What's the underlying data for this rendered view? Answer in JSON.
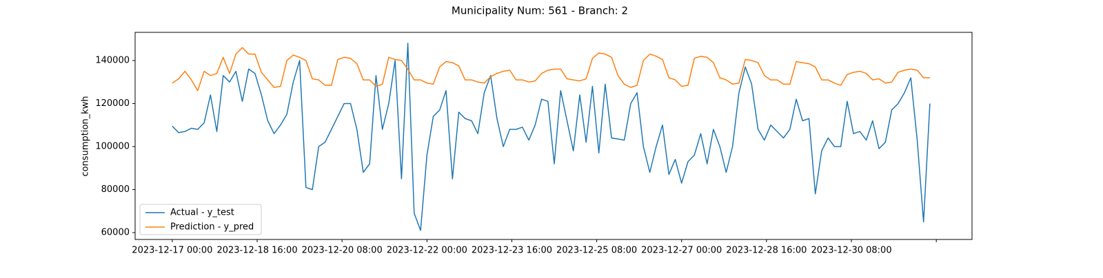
{
  "chart_data": {
    "type": "line",
    "title": "Municipality Num: 561 - Branch: 2",
    "y_label": "consumption_kwh",
    "x": [
      "2023-12-17 00:00",
      "2023-12-17 03:00",
      "2023-12-17 06:00",
      "2023-12-17 09:00",
      "2023-12-17 12:00",
      "2023-12-17 15:00",
      "2023-12-17 18:00",
      "2023-12-17 21:00",
      "2023-12-18 00:00",
      "2023-12-18 03:00",
      "2023-12-18 06:00",
      "2023-12-18 09:00",
      "2023-12-18 12:00",
      "2023-12-18 15:00",
      "2023-12-18 18:00",
      "2023-12-18 21:00",
      "2023-12-19 00:00",
      "2023-12-19 03:00",
      "2023-12-19 06:00",
      "2023-12-19 09:00",
      "2023-12-19 12:00",
      "2023-12-19 15:00",
      "2023-12-19 18:00",
      "2023-12-19 21:00",
      "2023-12-20 00:00",
      "2023-12-20 03:00",
      "2023-12-20 06:00",
      "2023-12-20 09:00",
      "2023-12-20 12:00",
      "2023-12-20 15:00",
      "2023-12-20 18:00",
      "2023-12-20 21:00",
      "2023-12-21 00:00",
      "2023-12-21 03:00",
      "2023-12-21 06:00",
      "2023-12-21 09:00",
      "2023-12-21 12:00",
      "2023-12-21 15:00",
      "2023-12-21 18:00",
      "2023-12-21 21:00",
      "2023-12-22 00:00",
      "2023-12-22 03:00",
      "2023-12-22 06:00",
      "2023-12-22 09:00",
      "2023-12-22 12:00",
      "2023-12-22 15:00",
      "2023-12-22 18:00",
      "2023-12-22 21:00",
      "2023-12-23 00:00",
      "2023-12-23 03:00",
      "2023-12-23 06:00",
      "2023-12-23 09:00",
      "2023-12-23 12:00",
      "2023-12-23 15:00",
      "2023-12-23 18:00",
      "2023-12-23 21:00",
      "2023-12-24 00:00",
      "2023-12-24 03:00",
      "2023-12-24 06:00",
      "2023-12-24 09:00",
      "2023-12-24 12:00",
      "2023-12-24 15:00",
      "2023-12-24 18:00",
      "2023-12-24 21:00",
      "2023-12-25 00:00",
      "2023-12-25 03:00",
      "2023-12-25 06:00",
      "2023-12-25 09:00",
      "2023-12-25 12:00",
      "2023-12-25 15:00",
      "2023-12-25 18:00",
      "2023-12-25 21:00",
      "2023-12-26 00:00",
      "2023-12-26 03:00",
      "2023-12-26 06:00",
      "2023-12-26 09:00",
      "2023-12-26 12:00",
      "2023-12-26 15:00",
      "2023-12-26 18:00",
      "2023-12-26 21:00",
      "2023-12-27 00:00",
      "2023-12-27 03:00",
      "2023-12-27 06:00",
      "2023-12-27 09:00",
      "2023-12-27 12:00",
      "2023-12-27 15:00",
      "2023-12-27 18:00",
      "2023-12-27 21:00",
      "2023-12-28 00:00",
      "2023-12-28 03:00",
      "2023-12-28 06:00",
      "2023-12-28 09:00",
      "2023-12-28 12:00",
      "2023-12-28 15:00",
      "2023-12-28 18:00",
      "2023-12-28 21:00",
      "2023-12-29 00:00",
      "2023-12-29 03:00",
      "2023-12-29 06:00",
      "2023-12-29 09:00",
      "2023-12-29 12:00",
      "2023-12-29 15:00",
      "2023-12-29 18:00",
      "2023-12-29 21:00",
      "2023-12-30 00:00",
      "2023-12-30 03:00",
      "2023-12-30 06:00",
      "2023-12-30 09:00",
      "2023-12-30 12:00",
      "2023-12-30 15:00",
      "2023-12-30 18:00",
      "2023-12-30 21:00",
      "2023-12-31 00:00",
      "2023-12-31 03:00",
      "2023-12-31 06:00",
      "2023-12-31 09:00",
      "2023-12-31 12:00",
      "2023-12-31 15:00",
      "2023-12-31 18:00",
      "2023-12-31 21:00"
    ],
    "series": [
      {
        "name": "Actual - y_test",
        "color": "#1f77b4",
        "values": [
          109500,
          106500,
          107000,
          108500,
          108000,
          111000,
          124000,
          107000,
          133000,
          130000,
          135000,
          121000,
          136000,
          134000,
          124000,
          112000,
          106000,
          110000,
          115000,
          130000,
          140000,
          81000,
          80000,
          100000,
          102000,
          108000,
          114000,
          120000,
          120000,
          108000,
          88000,
          92000,
          133000,
          108000,
          120000,
          140000,
          85000,
          148000,
          69000,
          61000,
          96000,
          114000,
          117000,
          126000,
          85000,
          116000,
          113000,
          112000,
          106000,
          125000,
          133000,
          113000,
          100000,
          108000,
          108000,
          109000,
          103000,
          110000,
          122000,
          121000,
          92000,
          126000,
          112000,
          98000,
          124000,
          102000,
          128000,
          97000,
          129000,
          104000,
          103500,
          103000,
          120000,
          125000,
          100000,
          88000,
          100000,
          110000,
          87000,
          94000,
          83000,
          93000,
          96000,
          106000,
          92000,
          108000,
          100000,
          88000,
          100000,
          125000,
          137000,
          129000,
          108000,
          103000,
          110000,
          107000,
          104000,
          108000,
          122000,
          112000,
          113000,
          78000,
          98000,
          104000,
          100000,
          100000,
          121000,
          106000,
          107000,
          103000,
          112000,
          99000,
          102000,
          117000,
          120000,
          125000,
          132000,
          103000,
          65000,
          120000
        ]
      },
      {
        "name": "Prediction - y_pred",
        "color": "#ff7f0e",
        "values": [
          129500,
          131500,
          135000,
          131000,
          126000,
          135000,
          133000,
          134000,
          141500,
          134000,
          143000,
          146000,
          143000,
          143000,
          134500,
          131000,
          127500,
          128000,
          140000,
          142500,
          141500,
          140000,
          131500,
          131000,
          128500,
          128500,
          140500,
          141500,
          141000,
          138500,
          131000,
          131000,
          128000,
          129000,
          141500,
          140500,
          140000,
          136000,
          131000,
          131000,
          129500,
          129000,
          137000,
          139500,
          139000,
          137500,
          131000,
          131000,
          130000,
          129500,
          132500,
          134000,
          135000,
          135500,
          131000,
          131000,
          130000,
          130500,
          134000,
          135500,
          136000,
          136000,
          131500,
          131000,
          130500,
          131500,
          141000,
          143500,
          143000,
          141500,
          133000,
          129000,
          127500,
          128500,
          140000,
          143000,
          142000,
          140500,
          132000,
          131000,
          128000,
          128500,
          141000,
          142000,
          141500,
          139000,
          132000,
          131000,
          129000,
          129500,
          140500,
          140000,
          139000,
          133000,
          131000,
          131000,
          129000,
          129000,
          139500,
          139000,
          138500,
          137000,
          131000,
          131000,
          129500,
          128500,
          133500,
          134500,
          135000,
          134000,
          131000,
          131500,
          129500,
          130000,
          134500,
          135500,
          136000,
          135500,
          132000,
          132000
        ]
      }
    ],
    "xlim": [
      "2023-12-16 06:30",
      "2024-01-01 16:50"
    ],
    "xticks": [
      "2023-12-17 00:00",
      "2023-12-18 16:00",
      "2023-12-20 08:00",
      "2023-12-22 00:00",
      "2023-12-23 16:00",
      "2023-12-25 08:00",
      "2023-12-27 00:00",
      "2023-12-28 16:00",
      "2023-12-30 08:00",
      {
        "value": "2024-01-01 00:00",
        "label": null
      }
    ],
    "ylim": [
      56800,
      153100
    ],
    "yticks": [
      60000,
      80000,
      100000,
      120000,
      140000
    ],
    "legend": "lower left"
  }
}
